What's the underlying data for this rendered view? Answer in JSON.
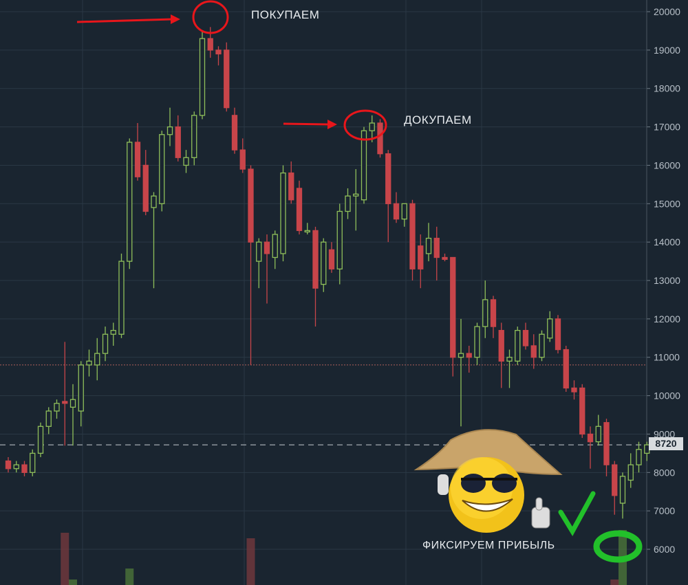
{
  "chart_data": {
    "type": "candlestick",
    "title": "",
    "xlabel": "",
    "ylabel": "",
    "ylim": [
      5800,
      20300
    ],
    "y_ticks": [
      20000,
      19000,
      18000,
      17000,
      16000,
      15000,
      14000,
      13000,
      12000,
      11000,
      10000,
      9000,
      8000,
      7000,
      6000
    ],
    "grid": true,
    "current_price": 8720,
    "reference_line": 10800,
    "colors": {
      "up": "#8fbf5a",
      "down": "#c8454a",
      "background": "#1a2530",
      "grid": "#2a3845",
      "annotation": "#e8161b",
      "highlight": "#22c02a"
    },
    "ohlc": [
      [
        8300,
        8400,
        8000,
        8100
      ],
      [
        8100,
        8300,
        8000,
        8200
      ],
      [
        8200,
        8300,
        7900,
        8000
      ],
      [
        8000,
        8600,
        7900,
        8500
      ],
      [
        8500,
        9300,
        8400,
        9200
      ],
      [
        9200,
        9700,
        9000,
        9600
      ],
      [
        9600,
        9900,
        9400,
        9800
      ],
      [
        9850,
        11400,
        8700,
        9800
      ],
      [
        9700,
        10300,
        8700,
        9900
      ],
      [
        9600,
        10900,
        9200,
        10800
      ],
      [
        10800,
        11200,
        10500,
        10900
      ],
      [
        10800,
        11500,
        10400,
        11100
      ],
      [
        11100,
        11800,
        10900,
        11600
      ],
      [
        11600,
        11900,
        11300,
        11700
      ],
      [
        11600,
        13700,
        11500,
        13500
      ],
      [
        13500,
        16700,
        13300,
        16600
      ],
      [
        16600,
        17100,
        15600,
        15700
      ],
      [
        16000,
        16400,
        14700,
        14800
      ],
      [
        14900,
        15300,
        12800,
        15200
      ],
      [
        15000,
        16900,
        14800,
        16800
      ],
      [
        16800,
        17500,
        16500,
        17000
      ],
      [
        17000,
        17300,
        16100,
        16200
      ],
      [
        16000,
        16400,
        15800,
        16200
      ],
      [
        16200,
        17400,
        16000,
        17300
      ],
      [
        17300,
        19500,
        17200,
        19300
      ],
      [
        19300,
        19600,
        18800,
        19000
      ],
      [
        19000,
        19100,
        18600,
        18900
      ],
      [
        19000,
        19200,
        17400,
        17500
      ],
      [
        17300,
        17500,
        16300,
        16400
      ],
      [
        16400,
        16700,
        15800,
        15900
      ],
      [
        15900,
        16000,
        10800,
        14000
      ],
      [
        13500,
        14100,
        12800,
        14000
      ],
      [
        14000,
        14200,
        12400,
        13700
      ],
      [
        13600,
        14300,
        13300,
        14200
      ],
      [
        13700,
        16000,
        13500,
        15800
      ],
      [
        15800,
        16100,
        15000,
        15100
      ],
      [
        15400,
        15600,
        14200,
        14300
      ],
      [
        14300,
        14500,
        14200,
        14300
      ],
      [
        14300,
        14400,
        11800,
        12800
      ],
      [
        12900,
        14100,
        12700,
        14000
      ],
      [
        13800,
        14000,
        13200,
        13300
      ],
      [
        13300,
        15000,
        12900,
        14800
      ],
      [
        14800,
        15400,
        14600,
        15200
      ],
      [
        15200,
        15900,
        14300,
        15250
      ],
      [
        15100,
        17000,
        15000,
        16900
      ],
      [
        16900,
        17300,
        16600,
        17100
      ],
      [
        17100,
        17200,
        16200,
        16300
      ],
      [
        16300,
        16400,
        14000,
        15000
      ],
      [
        15000,
        15300,
        14500,
        14600
      ],
      [
        14600,
        15000,
        14400,
        15000
      ],
      [
        15000,
        15100,
        13000,
        13300
      ],
      [
        13900,
        14200,
        12800,
        13300
      ],
      [
        13700,
        14500,
        13500,
        14100
      ],
      [
        14100,
        14400,
        13000,
        13600
      ],
      [
        13600,
        13700,
        13500,
        13550
      ],
      [
        13600,
        13600,
        10500,
        11000
      ],
      [
        11000,
        12000,
        9200,
        11100
      ],
      [
        11100,
        11300,
        10600,
        11000
      ],
      [
        11000,
        11900,
        10800,
        11800
      ],
      [
        11800,
        13000,
        11500,
        12500
      ],
      [
        12500,
        12600,
        11500,
        11800
      ],
      [
        11700,
        11900,
        10200,
        10900
      ],
      [
        10900,
        11200,
        10200,
        11000
      ],
      [
        10900,
        11800,
        10800,
        11700
      ],
      [
        11700,
        11900,
        11200,
        11300
      ],
      [
        11300,
        11600,
        10700,
        11000
      ],
      [
        11000,
        11700,
        10900,
        11600
      ],
      [
        11500,
        12200,
        11400,
        12000
      ],
      [
        12000,
        12100,
        11100,
        11200
      ],
      [
        11200,
        11300,
        10100,
        10200
      ],
      [
        10200,
        10400,
        9900,
        10100
      ],
      [
        10200,
        10300,
        8900,
        9000
      ],
      [
        9000,
        9200,
        8100,
        8800
      ],
      [
        8800,
        9500,
        8700,
        9200
      ],
      [
        9300,
        9400,
        7900,
        8200
      ],
      [
        8200,
        8300,
        6900,
        7400
      ],
      [
        7200,
        8000,
        6800,
        7900
      ],
      [
        7800,
        8500,
        7600,
        8200
      ],
      [
        8200,
        8800,
        8000,
        8600
      ],
      [
        8500,
        8800,
        8300,
        8720
      ]
    ],
    "volume_bars": [
      {
        "index": 7,
        "dir": "down",
        "level": 0.95
      },
      {
        "index": 8,
        "dir": "up",
        "level": 0.1
      },
      {
        "index": 15,
        "dir": "up",
        "level": 0.3
      },
      {
        "index": 30,
        "dir": "down",
        "level": 0.85
      },
      {
        "index": 76,
        "dir": "up",
        "level": 1.0
      },
      {
        "index": 75,
        "dir": "down",
        "level": 0.1
      }
    ]
  },
  "annotations": {
    "buy": "ПОКУПАЕМ",
    "buy_more": "ДОКУПАЕМ",
    "take_profit": "ФИКСИРУЕМ ПРИБЫЛЬ"
  },
  "icons": [
    "arrow-right-icon",
    "circle-marker-icon",
    "cool-smiley-icon",
    "thumbs-up-icon",
    "check-mark-icon"
  ]
}
